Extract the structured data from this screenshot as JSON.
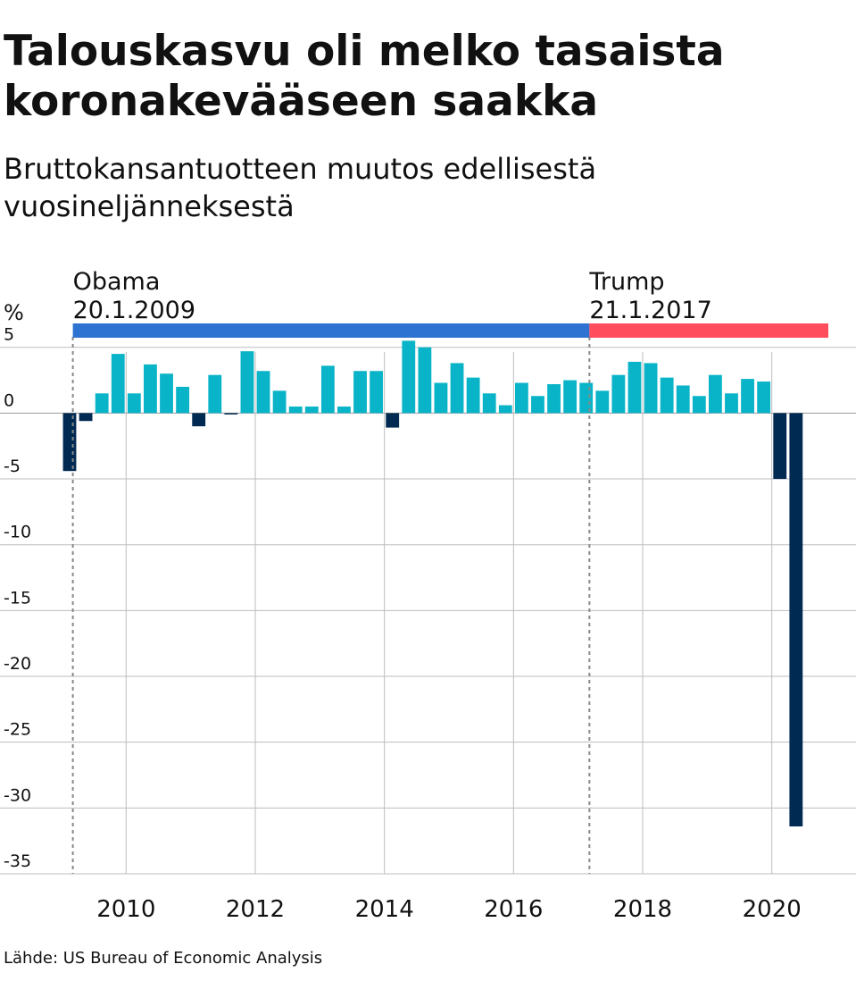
{
  "title": "Talouskasvu oli melko tasaista koronakevääseen saakka",
  "subtitle": "Bruttokansantuotteen muutos edellisestä vuosineljänneksestä",
  "source": "Lähde: US Bureau of Economic Analysis",
  "colors": {
    "positive": "#0ab4c8",
    "negative": "#002a52",
    "obama": "#2e73d2",
    "trump": "#ff4d5e",
    "grid": "#bdbdbd",
    "marker": "#888888"
  },
  "chart_data": {
    "type": "bar",
    "ylabel": "%",
    "ylim": [
      -35,
      6
    ],
    "yticks": [
      5,
      0,
      -5,
      -10,
      -15,
      -20,
      -25,
      -30,
      -35
    ],
    "xlim": [
      2009.0,
      2020.75
    ],
    "xticks": [
      2010,
      2012,
      2014,
      2016,
      2018,
      2020
    ],
    "grid": true,
    "series": [
      {
        "x": [
          2009.0,
          2009.25,
          2009.5,
          2009.75,
          2010.0,
          2010.25,
          2010.5,
          2010.75,
          2011.0,
          2011.25,
          2011.5,
          2011.75,
          2012.0,
          2012.25,
          2012.5,
          2012.75,
          2013.0,
          2013.25,
          2013.5,
          2013.75,
          2014.0,
          2014.25,
          2014.5,
          2014.75,
          2015.0,
          2015.25,
          2015.5,
          2015.75,
          2016.0,
          2016.25,
          2016.5,
          2016.75,
          2017.0,
          2017.25,
          2017.5,
          2017.75,
          2018.0,
          2018.25,
          2018.5,
          2018.75,
          2019.0,
          2019.25,
          2019.5,
          2019.75,
          2020.0,
          2020.25
        ],
        "values": [
          -4.4,
          -0.6,
          1.5,
          4.5,
          1.5,
          3.7,
          3.0,
          2.0,
          -1.0,
          2.9,
          -0.1,
          4.7,
          3.2,
          1.7,
          0.5,
          0.5,
          3.6,
          0.5,
          3.2,
          3.2,
          -1.1,
          5.5,
          5.0,
          2.3,
          3.8,
          2.7,
          1.5,
          0.6,
          2.3,
          1.3,
          2.2,
          2.5,
          2.3,
          1.7,
          2.9,
          3.9,
          3.8,
          2.7,
          2.1,
          1.3,
          2.9,
          1.5,
          2.6,
          2.4,
          -5.0,
          -31.4
        ]
      }
    ],
    "annotations": [
      {
        "label": "Obama",
        "date": "20.1.2009",
        "x": 2009.05,
        "x_end": 2017.05
      },
      {
        "label": "Trump",
        "date": "21.1.2017",
        "x": 2017.05,
        "x_end": 2020.75
      }
    ]
  }
}
